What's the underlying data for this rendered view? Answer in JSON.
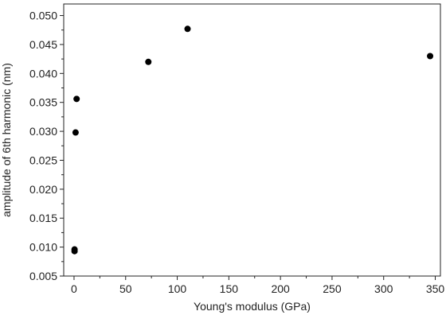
{
  "chart_data": {
    "type": "scatter",
    "xlabel": "Young's modulus (GPa)",
    "ylabel": "amplitude of 6th harmonic (nm)",
    "xlim": [
      -10,
      355
    ],
    "ylim": [
      0.005,
      0.052
    ],
    "x_ticks": [
      0,
      50,
      100,
      150,
      200,
      250,
      300,
      350
    ],
    "y_ticks": [
      0.005,
      0.01,
      0.015,
      0.02,
      0.025,
      0.03,
      0.035,
      0.04,
      0.045,
      0.05
    ],
    "x_tick_labels": [
      "0",
      "50",
      "100",
      "150",
      "200",
      "250",
      "300",
      "350"
    ],
    "y_tick_labels": [
      "0.005",
      "0.010",
      "0.015",
      "0.020",
      "0.025",
      "0.030",
      "0.035",
      "0.040",
      "0.045",
      "0.050"
    ],
    "grid": false,
    "marker_color": "#000000",
    "series": [
      {
        "points": [
          {
            "x": 0.5,
            "y": 0.0096
          },
          {
            "x": 0.5,
            "y": 0.0093
          },
          {
            "x": 1.5,
            "y": 0.0298
          },
          {
            "x": 2.5,
            "y": 0.0356
          },
          {
            "x": 72,
            "y": 0.042
          },
          {
            "x": 110,
            "y": 0.0477
          },
          {
            "x": 345,
            "y": 0.043
          }
        ]
      }
    ]
  }
}
